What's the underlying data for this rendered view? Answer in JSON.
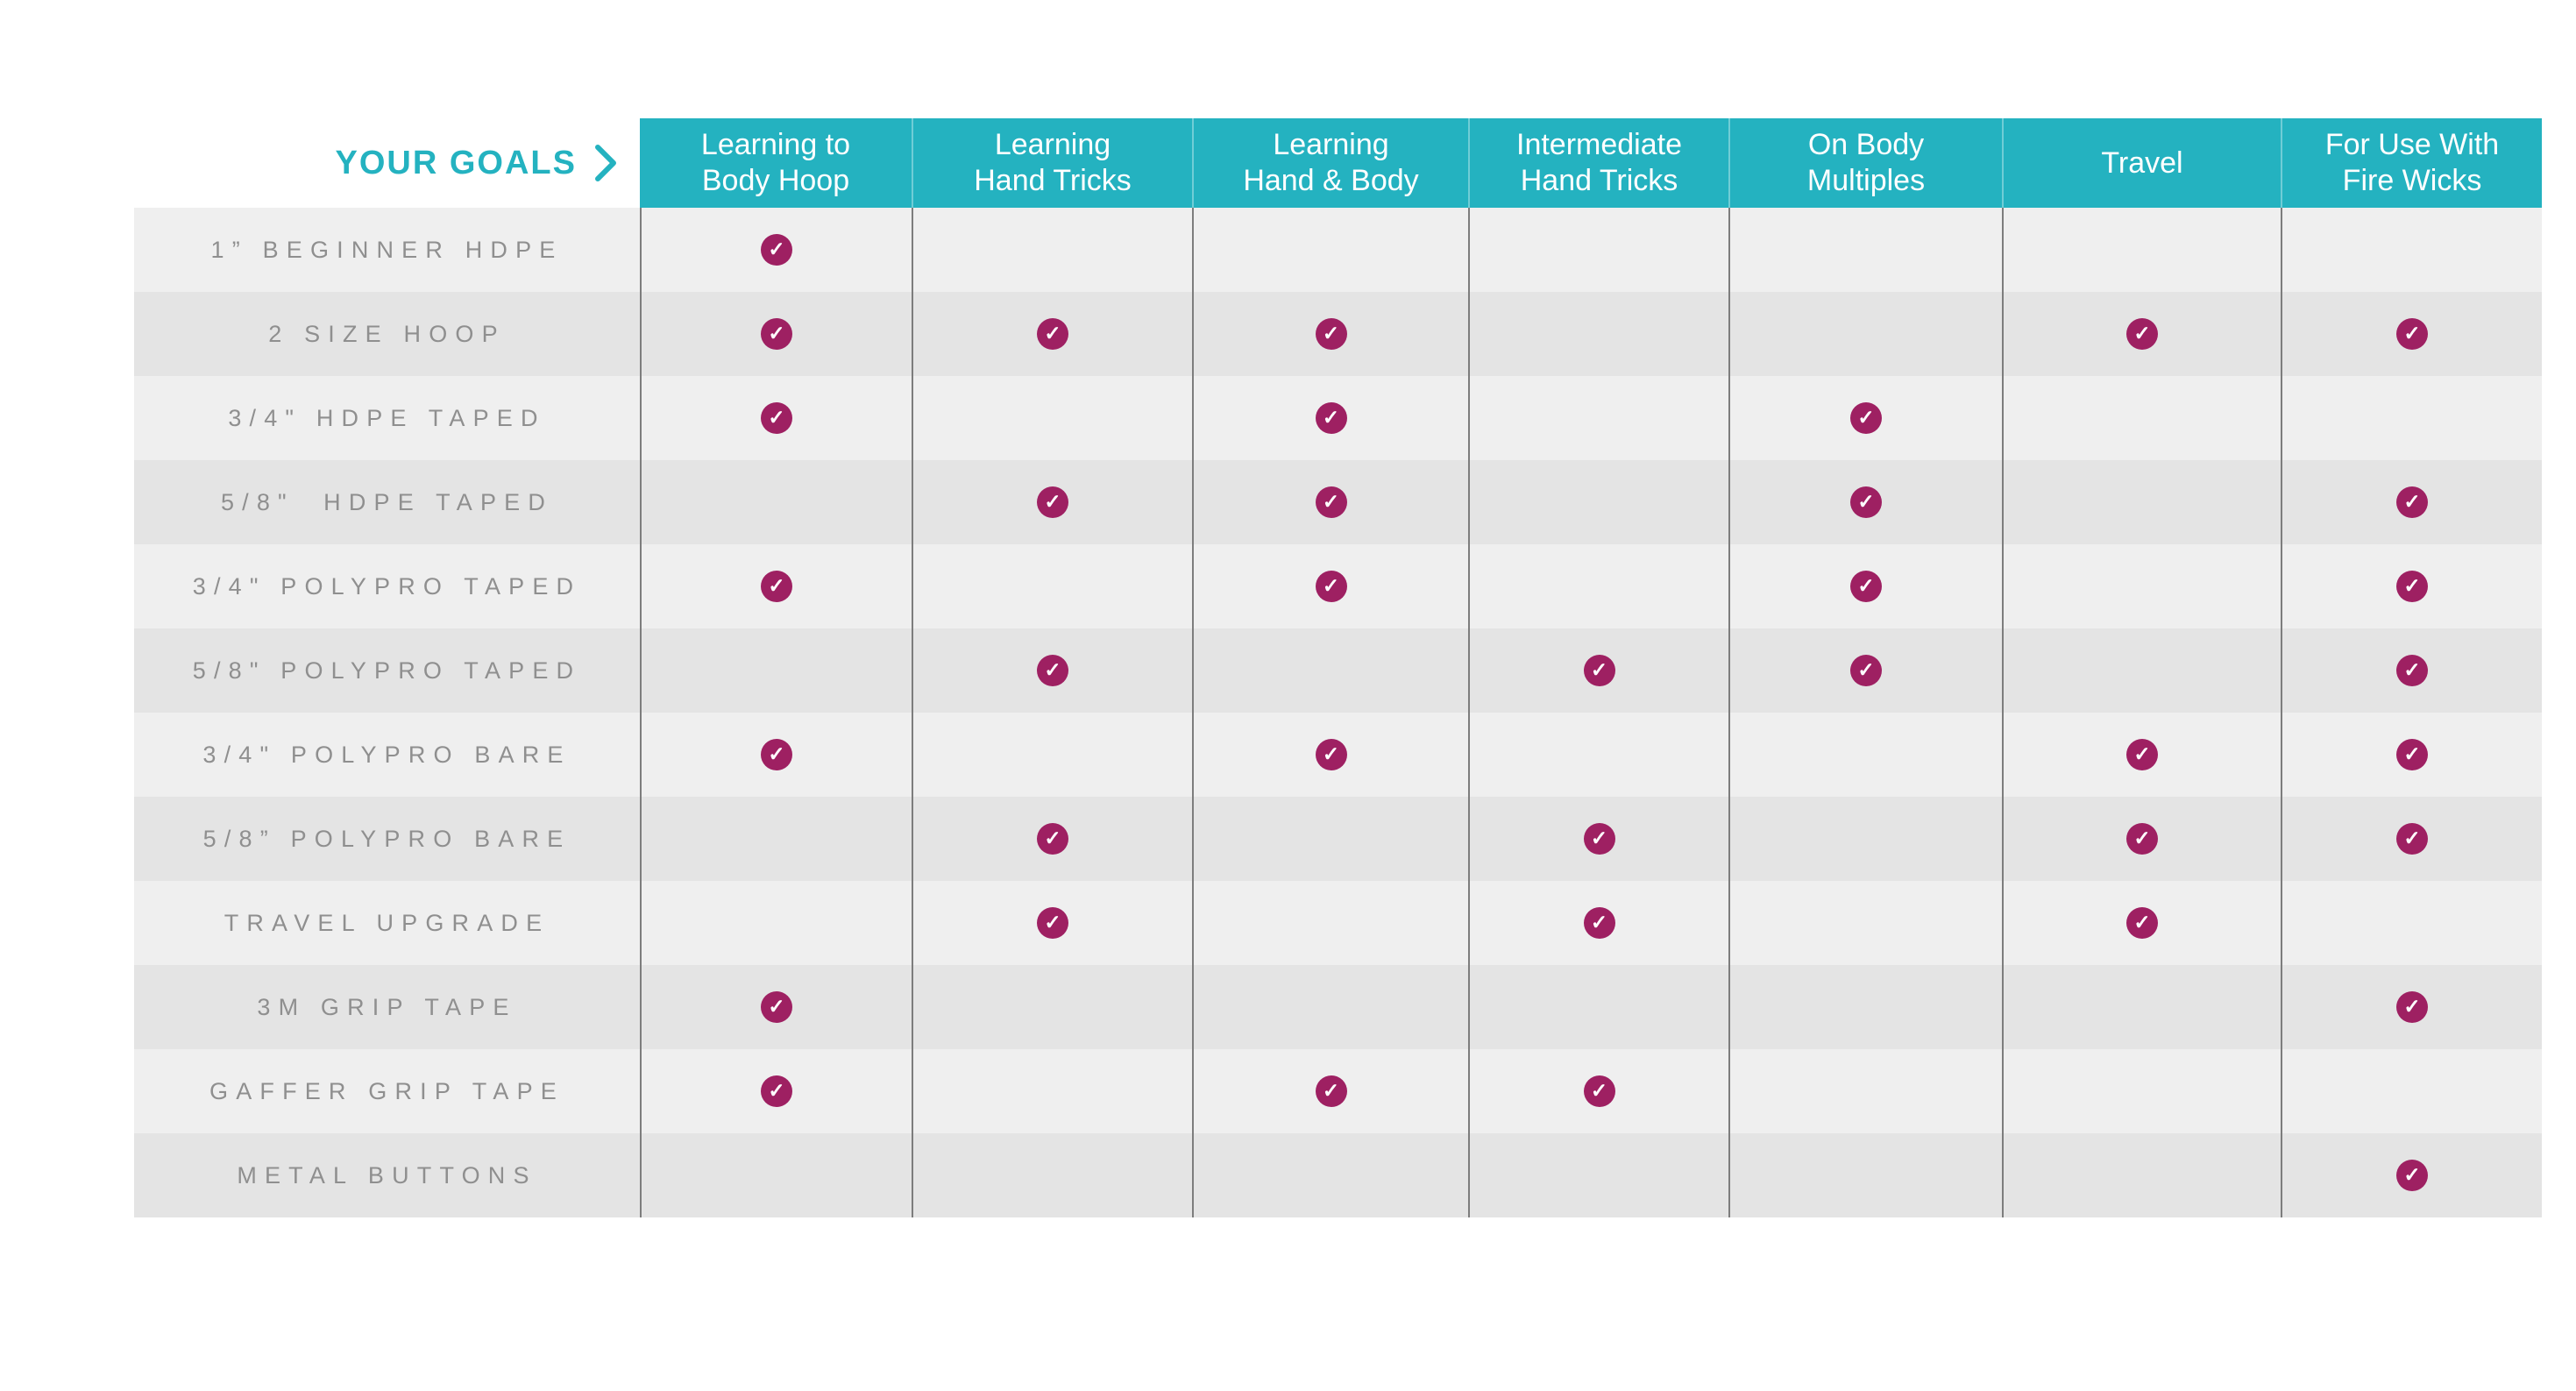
{
  "colors": {
    "teal": "#24b2c0",
    "berry": "#9e2062",
    "row_light": "#efefef",
    "row_dark": "#e4e4e4",
    "divider": "#7d7d7d",
    "label_text": "#8f8f8f",
    "header_text": "#ffffff"
  },
  "header": {
    "corner_label": "YOUR GOALS",
    "chevron_icon": "›",
    "goals": [
      {
        "line1": "Learning to",
        "line2": "Body Hoop"
      },
      {
        "line1": "Learning",
        "line2": "Hand Tricks"
      },
      {
        "line1": "Learning",
        "line2": "Hand & Body"
      },
      {
        "line1": "Intermediate",
        "line2": "Hand Tricks"
      },
      {
        "line1": "On Body",
        "line2": "Multiples"
      },
      {
        "line1": "Travel",
        "line2": ""
      },
      {
        "line1": "For Use With",
        "line2": "Fire Wicks"
      }
    ]
  },
  "check_mark_glyph": "✓",
  "rows": [
    {
      "label": "1” BEGINNER HDPE",
      "checks": [
        1,
        0,
        0,
        0,
        0,
        0,
        0
      ]
    },
    {
      "label": "2 SIZE HOOP",
      "checks": [
        1,
        1,
        1,
        0,
        0,
        1,
        1
      ]
    },
    {
      "label": "3/4\" HDPE TAPED",
      "checks": [
        1,
        0,
        1,
        0,
        1,
        0,
        0
      ]
    },
    {
      "label": "5/8\"  HDPE TAPED",
      "checks": [
        0,
        1,
        1,
        0,
        1,
        0,
        1
      ]
    },
    {
      "label": "3/4\" POLYPRO TAPED",
      "checks": [
        1,
        0,
        1,
        0,
        1,
        0,
        1
      ]
    },
    {
      "label": "5/8\" POLYPRO TAPED",
      "checks": [
        0,
        1,
        0,
        1,
        1,
        0,
        1
      ]
    },
    {
      "label": "3/4\" POLYPRO BARE",
      "checks": [
        1,
        0,
        1,
        0,
        0,
        1,
        1
      ]
    },
    {
      "label": "5/8” POLYPRO BARE",
      "checks": [
        0,
        1,
        0,
        1,
        0,
        1,
        1
      ]
    },
    {
      "label": "TRAVEL UPGRADE",
      "checks": [
        0,
        1,
        0,
        1,
        0,
        1,
        0
      ]
    },
    {
      "label": "3M GRIP TAPE",
      "checks": [
        1,
        0,
        0,
        0,
        0,
        0,
        1
      ]
    },
    {
      "label": "GAFFER GRIP TAPE",
      "checks": [
        1,
        0,
        1,
        1,
        0,
        0,
        0
      ]
    },
    {
      "label": "METAL BUTTONS",
      "checks": [
        0,
        0,
        0,
        0,
        0,
        0,
        1
      ]
    }
  ],
  "chart_data": {
    "type": "table",
    "title": "YOUR GOALS",
    "columns": [
      "Learning to Body Hoop",
      "Learning Hand Tricks",
      "Learning Hand & Body",
      "Intermediate Hand Tricks",
      "On Body Multiples",
      "Travel",
      "For Use With Fire Wicks"
    ],
    "row_labels": [
      "1” BEGINNER HDPE",
      "2 SIZE HOOP",
      "3/4\" HDPE TAPED",
      "5/8\" HDPE TAPED",
      "3/4\" POLYPRO TAPED",
      "5/8\" POLYPRO TAPED",
      "3/4\" POLYPRO BARE",
      "5/8\" POLYPRO BARE",
      "TRAVEL UPGRADE",
      "3M GRIP TAPE",
      "GAFFER GRIP TAPE",
      "METAL BUTTONS"
    ],
    "matrix": [
      [
        1,
        0,
        0,
        0,
        0,
        0,
        0
      ],
      [
        1,
        1,
        1,
        0,
        0,
        1,
        1
      ],
      [
        1,
        0,
        1,
        0,
        1,
        0,
        0
      ],
      [
        0,
        1,
        1,
        0,
        1,
        0,
        1
      ],
      [
        1,
        0,
        1,
        0,
        1,
        0,
        1
      ],
      [
        0,
        1,
        0,
        1,
        1,
        0,
        1
      ],
      [
        1,
        0,
        1,
        0,
        0,
        1,
        1
      ],
      [
        0,
        1,
        0,
        1,
        0,
        1,
        1
      ],
      [
        0,
        1,
        0,
        1,
        0,
        1,
        0
      ],
      [
        1,
        0,
        0,
        0,
        0,
        0,
        1
      ],
      [
        1,
        0,
        1,
        1,
        0,
        0,
        0
      ],
      [
        0,
        0,
        0,
        0,
        0,
        0,
        1
      ]
    ],
    "legend": "1 = checked (berry circle with white check), 0 = empty cell",
    "layout_hints": {
      "alternating_row_shading": true,
      "column_dividers": true,
      "header_fill": "#24b2c0"
    }
  }
}
